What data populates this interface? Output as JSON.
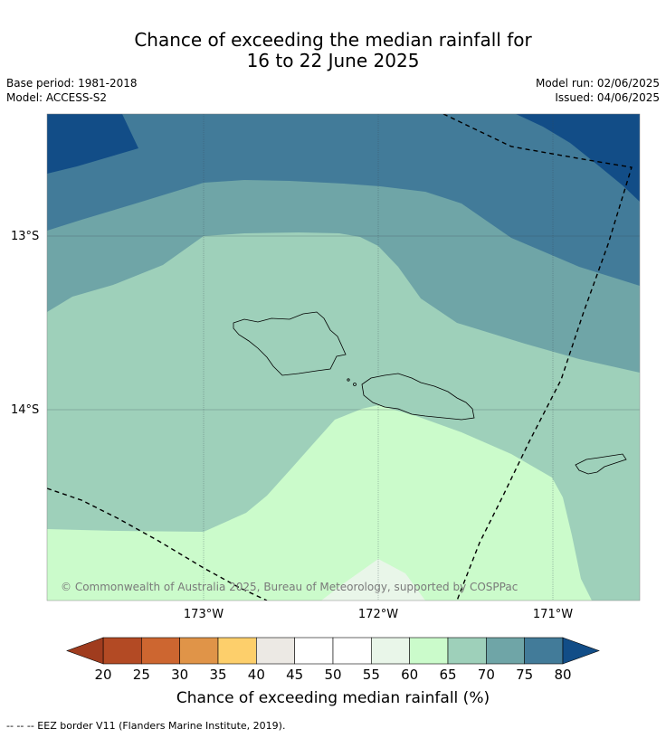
{
  "title_line1": "Chance of exceeding the median rainfall for",
  "title_line2": "16 to 22 June 2025",
  "base_period": "Base period: 1981-2018",
  "model": "Model: ACCESS-S2",
  "model_run": "Model run: 02/06/2025",
  "issued": "Issued: 04/06/2025",
  "lat_labels": [
    "13°S",
    "14°S"
  ],
  "lon_labels": [
    "173°W",
    "172°W",
    "171°W"
  ],
  "copyright": "© Commonwealth of Australia 2025, Bureau of Meteorology, supported by COSPPac",
  "colorbar": {
    "label": "Chance of exceeding median rainfall (%)",
    "ticks": [
      "20",
      "25",
      "30",
      "35",
      "40",
      "45",
      "50",
      "55",
      "60",
      "65",
      "70",
      "75",
      "80"
    ],
    "colors": [
      "#b34a24",
      "#cd6630",
      "#e09448",
      "#fdcf6b",
      "#ece9e4",
      "#ffffff",
      "#ffffff",
      "#e9f6e9",
      "#cbfbcb",
      "#9ed0ba",
      "#6fa5a7",
      "#427b99",
      "#124d87"
    ],
    "under_color": "#a03c1e",
    "over_color": "#124d87"
  },
  "footer": "--  --  -- EEZ border V11 (Flanders Marine Institute, 2019)."
}
